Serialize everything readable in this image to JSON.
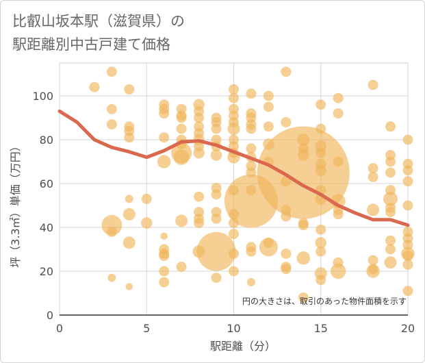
{
  "title": {
    "line1": "比叡山坂本駅（滋賀県）の",
    "line2": "駅距離別中古戸建て価格"
  },
  "chart_data": {
    "type": "scatter",
    "title": "比叡山坂本駅（滋賀県）の駅距離別中古戸建て価格",
    "xlabel": "駅距離（分）",
    "ylabel": "坪（3.3㎡）単価（万円）",
    "xlim": [
      0,
      20
    ],
    "ylim": [
      0,
      115
    ],
    "xticks": [
      "0",
      "5",
      "10",
      "15",
      "20"
    ],
    "yticks": [
      "0",
      "20",
      "40",
      "60",
      "80",
      "100"
    ],
    "grid": true,
    "note": "円の大きさは、取引のあった物件面積を示す",
    "bubble_color": "#f0b55a",
    "trend_color": "#d9684e",
    "points": [
      {
        "x": 2,
        "y": 104,
        "s": 1
      },
      {
        "x": 3,
        "y": 111,
        "s": 1
      },
      {
        "x": 3,
        "y": 94,
        "s": 1
      },
      {
        "x": 3,
        "y": 87,
        "s": 1
      },
      {
        "x": 3,
        "y": 41,
        "s": 2
      },
      {
        "x": 3,
        "y": 38,
        "s": 1
      },
      {
        "x": 3,
        "y": 17,
        "s": 0.8
      },
      {
        "x": 4,
        "y": 103,
        "s": 1
      },
      {
        "x": 4,
        "y": 86,
        "s": 1
      },
      {
        "x": 4,
        "y": 84,
        "s": 1
      },
      {
        "x": 4,
        "y": 81,
        "s": 1
      },
      {
        "x": 4,
        "y": 53,
        "s": 0.8
      },
      {
        "x": 4,
        "y": 46,
        "s": 1.2
      },
      {
        "x": 4,
        "y": 33,
        "s": 1.2
      },
      {
        "x": 4,
        "y": 13,
        "s": 0.7
      },
      {
        "x": 5,
        "y": 53,
        "s": 1
      },
      {
        "x": 5,
        "y": 42,
        "s": 1.1
      },
      {
        "x": 6,
        "y": 96,
        "s": 1
      },
      {
        "x": 6,
        "y": 94,
        "s": 1
      },
      {
        "x": 6,
        "y": 92,
        "s": 1
      },
      {
        "x": 6,
        "y": 81,
        "s": 1
      },
      {
        "x": 6,
        "y": 70,
        "s": 1.3
      },
      {
        "x": 6,
        "y": 36,
        "s": 0.7
      },
      {
        "x": 6,
        "y": 30,
        "s": 1
      },
      {
        "x": 6,
        "y": 28,
        "s": 1
      },
      {
        "x": 6,
        "y": 27,
        "s": 1
      },
      {
        "x": 6,
        "y": 20,
        "s": 1
      },
      {
        "x": 6,
        "y": 15,
        "s": 1
      },
      {
        "x": 7,
        "y": 94,
        "s": 1
      },
      {
        "x": 7,
        "y": 91,
        "s": 1
      },
      {
        "x": 7,
        "y": 90,
        "s": 1
      },
      {
        "x": 7,
        "y": 85,
        "s": 1
      },
      {
        "x": 7,
        "y": 80,
        "s": 1
      },
      {
        "x": 7,
        "y": 78,
        "s": 1
      },
      {
        "x": 7,
        "y": 74,
        "s": 2
      },
      {
        "x": 7,
        "y": 72,
        "s": 1.5
      },
      {
        "x": 7,
        "y": 43,
        "s": 1.2
      },
      {
        "x": 7,
        "y": 22,
        "s": 1
      },
      {
        "x": 8,
        "y": 96,
        "s": 1.1
      },
      {
        "x": 8,
        "y": 93,
        "s": 1
      },
      {
        "x": 8,
        "y": 90,
        "s": 1
      },
      {
        "x": 8,
        "y": 86,
        "s": 1
      },
      {
        "x": 8,
        "y": 83,
        "s": 1
      },
      {
        "x": 8,
        "y": 80,
        "s": 1.1
      },
      {
        "x": 8,
        "y": 77,
        "s": 1
      },
      {
        "x": 8,
        "y": 74,
        "s": 1.1
      },
      {
        "x": 8,
        "y": 54,
        "s": 1
      },
      {
        "x": 8,
        "y": 47,
        "s": 1
      },
      {
        "x": 8,
        "y": 44,
        "s": 1
      },
      {
        "x": 8,
        "y": 42,
        "s": 1
      },
      {
        "x": 8,
        "y": 29,
        "s": 1.2
      },
      {
        "x": 9,
        "y": 90,
        "s": 1
      },
      {
        "x": 9,
        "y": 88,
        "s": 1
      },
      {
        "x": 9,
        "y": 85,
        "s": 1
      },
      {
        "x": 9,
        "y": 80,
        "s": 1
      },
      {
        "x": 9,
        "y": 77,
        "s": 1
      },
      {
        "x": 9,
        "y": 73,
        "s": 1.1
      },
      {
        "x": 9,
        "y": 58,
        "s": 1
      },
      {
        "x": 9,
        "y": 55,
        "s": 1
      },
      {
        "x": 9,
        "y": 47,
        "s": 1
      },
      {
        "x": 9,
        "y": 44,
        "s": 1
      },
      {
        "x": 9,
        "y": 29,
        "s": 3.8
      },
      {
        "x": 9,
        "y": 17,
        "s": 1
      },
      {
        "x": 10,
        "y": 103,
        "s": 1
      },
      {
        "x": 10,
        "y": 99,
        "s": 1
      },
      {
        "x": 10,
        "y": 94,
        "s": 1
      },
      {
        "x": 10,
        "y": 91,
        "s": 1
      },
      {
        "x": 10,
        "y": 88,
        "s": 1
      },
      {
        "x": 10,
        "y": 85,
        "s": 1.2
      },
      {
        "x": 10,
        "y": 80,
        "s": 1
      },
      {
        "x": 10,
        "y": 77,
        "s": 1
      },
      {
        "x": 10,
        "y": 74,
        "s": 1
      },
      {
        "x": 10,
        "y": 72,
        "s": 1.2
      },
      {
        "x": 10,
        "y": 57,
        "s": 1
      },
      {
        "x": 10,
        "y": 46,
        "s": 1
      },
      {
        "x": 10,
        "y": 42,
        "s": 1
      },
      {
        "x": 10,
        "y": 37,
        "s": 1
      },
      {
        "x": 10,
        "y": 28,
        "s": 1
      },
      {
        "x": 10,
        "y": 20,
        "s": 1
      },
      {
        "x": 11,
        "y": 101,
        "s": 1
      },
      {
        "x": 11,
        "y": 92,
        "s": 1
      },
      {
        "x": 11,
        "y": 90,
        "s": 1
      },
      {
        "x": 11,
        "y": 87,
        "s": 1
      },
      {
        "x": 11,
        "y": 85,
        "s": 1
      },
      {
        "x": 11,
        "y": 76,
        "s": 1
      },
      {
        "x": 11,
        "y": 72,
        "s": 1
      },
      {
        "x": 11,
        "y": 68,
        "s": 1
      },
      {
        "x": 11,
        "y": 65,
        "s": 1
      },
      {
        "x": 11,
        "y": 57,
        "s": 1
      },
      {
        "x": 11,
        "y": 52,
        "s": 5.2
      },
      {
        "x": 11,
        "y": 31,
        "s": 1
      },
      {
        "x": 11,
        "y": 29,
        "s": 1
      },
      {
        "x": 11,
        "y": 15,
        "s": 0.8
      },
      {
        "x": 12,
        "y": 100,
        "s": 1
      },
      {
        "x": 12,
        "y": 95,
        "s": 1
      },
      {
        "x": 12,
        "y": 86,
        "s": 1
      },
      {
        "x": 12,
        "y": 78,
        "s": 1.1
      },
      {
        "x": 12,
        "y": 70,
        "s": 1
      },
      {
        "x": 12,
        "y": 31,
        "s": 1.8
      },
      {
        "x": 12,
        "y": 33,
        "s": 1
      },
      {
        "x": 13,
        "y": 111,
        "s": 1
      },
      {
        "x": 13,
        "y": 88,
        "s": 1
      },
      {
        "x": 13,
        "y": 61,
        "s": 1
      },
      {
        "x": 13,
        "y": 48,
        "s": 1
      },
      {
        "x": 13,
        "y": 45,
        "s": 1
      },
      {
        "x": 13,
        "y": 28,
        "s": 1
      },
      {
        "x": 13,
        "y": 22,
        "s": 1
      },
      {
        "x": 13,
        "y": 21,
        "s": 1
      },
      {
        "x": 14,
        "y": 80,
        "s": 1.2
      },
      {
        "x": 14,
        "y": 76,
        "s": 1
      },
      {
        "x": 14,
        "y": 73,
        "s": 1.1
      },
      {
        "x": 14,
        "y": 65,
        "s": 9
      },
      {
        "x": 14,
        "y": 42,
        "s": 1
      },
      {
        "x": 14,
        "y": 41,
        "s": 1
      },
      {
        "x": 14,
        "y": 26,
        "s": 1.3
      },
      {
        "x": 14,
        "y": 8,
        "s": 1
      },
      {
        "x": 15,
        "y": 96,
        "s": 1
      },
      {
        "x": 15,
        "y": 85,
        "s": 1
      },
      {
        "x": 15,
        "y": 77,
        "s": 1.1
      },
      {
        "x": 15,
        "y": 74,
        "s": 1
      },
      {
        "x": 15,
        "y": 69,
        "s": 1
      },
      {
        "x": 15,
        "y": 66,
        "s": 1.1
      },
      {
        "x": 15,
        "y": 57,
        "s": 1
      },
      {
        "x": 15,
        "y": 53,
        "s": 1.1
      },
      {
        "x": 15,
        "y": 39,
        "s": 1
      },
      {
        "x": 15,
        "y": 33,
        "s": 1.1
      },
      {
        "x": 15,
        "y": 29,
        "s": 1
      },
      {
        "x": 15,
        "y": 19,
        "s": 1.2
      },
      {
        "x": 15,
        "y": 16,
        "s": 1
      },
      {
        "x": 16,
        "y": 99,
        "s": 1
      },
      {
        "x": 16,
        "y": 92,
        "s": 1
      },
      {
        "x": 16,
        "y": 70,
        "s": 1
      },
      {
        "x": 16,
        "y": 52,
        "s": 1.4
      },
      {
        "x": 16,
        "y": 48,
        "s": 1
      },
      {
        "x": 16,
        "y": 46,
        "s": 1
      },
      {
        "x": 16,
        "y": 24,
        "s": 1
      },
      {
        "x": 16,
        "y": 20,
        "s": 1.5
      },
      {
        "x": 18,
        "y": 105,
        "s": 1
      },
      {
        "x": 18,
        "y": 67,
        "s": 1
      },
      {
        "x": 18,
        "y": 63,
        "s": 1
      },
      {
        "x": 18,
        "y": 48,
        "s": 1.2
      },
      {
        "x": 18,
        "y": 25,
        "s": 1
      },
      {
        "x": 18,
        "y": 21,
        "s": 1
      },
      {
        "x": 18,
        "y": 20,
        "s": 1.3
      },
      {
        "x": 19,
        "y": 86,
        "s": 1
      },
      {
        "x": 19,
        "y": 73,
        "s": 1
      },
      {
        "x": 19,
        "y": 70,
        "s": 1
      },
      {
        "x": 19,
        "y": 65,
        "s": 1
      },
      {
        "x": 19,
        "y": 57,
        "s": 1
      },
      {
        "x": 19,
        "y": 53,
        "s": 1.4
      },
      {
        "x": 19,
        "y": 49,
        "s": 1
      },
      {
        "x": 19,
        "y": 47,
        "s": 1
      },
      {
        "x": 19,
        "y": 34,
        "s": 1
      },
      {
        "x": 19,
        "y": 30,
        "s": 1
      },
      {
        "x": 19,
        "y": 24,
        "s": 1.2
      },
      {
        "x": 20,
        "y": 80,
        "s": 1
      },
      {
        "x": 20,
        "y": 69,
        "s": 1
      },
      {
        "x": 20,
        "y": 66,
        "s": 1
      },
      {
        "x": 20,
        "y": 61,
        "s": 1
      },
      {
        "x": 20,
        "y": 50,
        "s": 1
      },
      {
        "x": 20,
        "y": 38,
        "s": 1
      },
      {
        "x": 20,
        "y": 35,
        "s": 1
      },
      {
        "x": 20,
        "y": 32,
        "s": 1
      },
      {
        "x": 20,
        "y": 28,
        "s": 1.3
      },
      {
        "x": 20,
        "y": 27,
        "s": 1
      },
      {
        "x": 20,
        "y": 23,
        "s": 1
      },
      {
        "x": 20,
        "y": 11,
        "s": 1
      }
    ],
    "trend": [
      {
        "x": 0,
        "y": 93
      },
      {
        "x": 1,
        "y": 88
      },
      {
        "x": 2,
        "y": 80
      },
      {
        "x": 3,
        "y": 76.5
      },
      {
        "x": 4,
        "y": 74.5
      },
      {
        "x": 5,
        "y": 72
      },
      {
        "x": 6,
        "y": 75
      },
      {
        "x": 7,
        "y": 79
      },
      {
        "x": 8,
        "y": 79.5
      },
      {
        "x": 9,
        "y": 77.5
      },
      {
        "x": 10,
        "y": 74.5
      },
      {
        "x": 11,
        "y": 71.5
      },
      {
        "x": 12,
        "y": 68.5
      },
      {
        "x": 13,
        "y": 64
      },
      {
        "x": 14,
        "y": 59
      },
      {
        "x": 15,
        "y": 55
      },
      {
        "x": 16,
        "y": 50
      },
      {
        "x": 17,
        "y": 46.5
      },
      {
        "x": 18,
        "y": 43.5
      },
      {
        "x": 19,
        "y": 43.5
      },
      {
        "x": 20,
        "y": 41
      }
    ]
  }
}
